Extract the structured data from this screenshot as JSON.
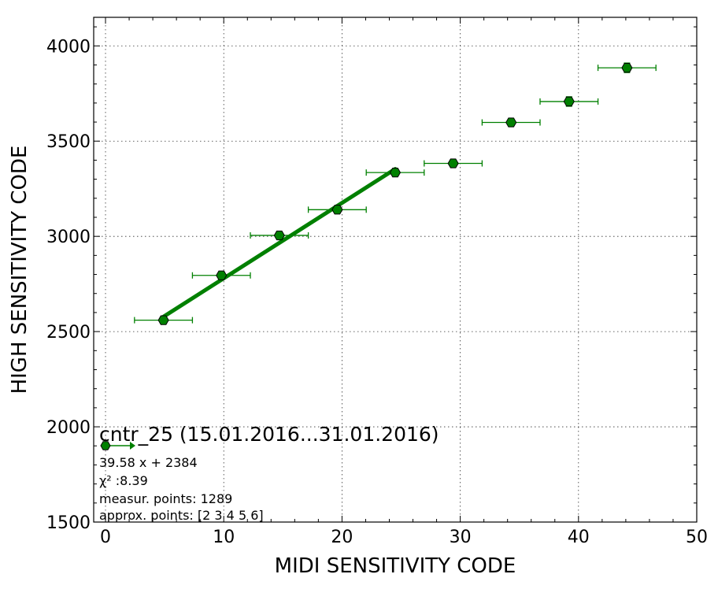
{
  "chart_data": {
    "type": "scatter",
    "xlabel": "MIDI SENSITIVITY CODE",
    "ylabel": "HIGH SENSITIVITY CODE",
    "xlim": [
      -1,
      50
    ],
    "ylim": [
      1500,
      4150
    ],
    "xticks": [
      0,
      10,
      20,
      30,
      40,
      50
    ],
    "yticks": [
      1500,
      2000,
      2500,
      3000,
      3500,
      4000
    ],
    "grid": true,
    "colors": {
      "points": "#008000",
      "fit_line": "#008000",
      "marker_edge": "#000000"
    },
    "series": [
      {
        "x": [
          4.9,
          9.8,
          14.7,
          19.6,
          24.5,
          29.4,
          34.3,
          39.2,
          44.1
        ],
        "y": [
          2560,
          2795,
          3005,
          3140,
          3335,
          3383,
          3598,
          3708,
          3885
        ],
        "x_err": [
          2.45,
          2.45,
          2.45,
          2.45,
          2.45,
          2.45,
          2.45,
          2.45,
          2.45
        ],
        "y_err": [
          10,
          10,
          12,
          14,
          14,
          16,
          18,
          25,
          25
        ]
      }
    ],
    "fit_line": {
      "slope": 39.58,
      "intercept": 2384,
      "x_range": [
        4.9,
        24.5
      ]
    },
    "annotation": {
      "title": "cntr_25 (15.01.2016...31.01.2016)",
      "lines": [
        "39.58 x + 2384",
        "χ² :8.39",
        "measur. points: 1289",
        "approx. points: [2 3 4 5 6]"
      ]
    }
  }
}
